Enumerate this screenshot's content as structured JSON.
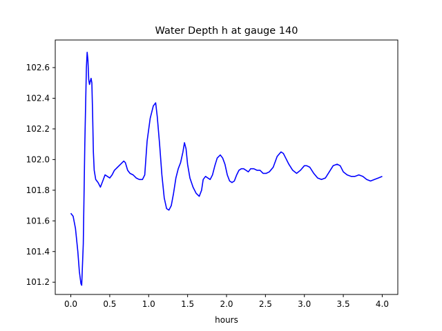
{
  "chart_data": {
    "type": "line",
    "title": "Water Depth h at gauge 140",
    "xlabel": "hours",
    "ylabel": "",
    "xlim": [
      -0.2,
      4.2
    ],
    "ylim": [
      101.12,
      102.78
    ],
    "xticks": [
      0.0,
      0.5,
      1.0,
      1.5,
      2.0,
      2.5,
      3.0,
      3.5,
      4.0
    ],
    "xtick_labels": [
      "0.0",
      "0.5",
      "1.0",
      "1.5",
      "2.0",
      "2.5",
      "3.0",
      "3.5",
      "4.0"
    ],
    "yticks": [
      101.2,
      101.4,
      101.6,
      101.8,
      102.0,
      102.2,
      102.4,
      102.6
    ],
    "ytick_labels": [
      "101.2",
      "101.4",
      "101.6",
      "101.8",
      "102.0",
      "102.2",
      "102.4",
      "102.6"
    ],
    "grid": false,
    "colors": {
      "line": "#0000ff",
      "axes": "#000000",
      "background": "#ffffff"
    },
    "series": [
      {
        "x": [
          0.0,
          0.03,
          0.06,
          0.09,
          0.11,
          0.13,
          0.14,
          0.16,
          0.18,
          0.2,
          0.21,
          0.22,
          0.23,
          0.24,
          0.25,
          0.26,
          0.27,
          0.28,
          0.29,
          0.3,
          0.32,
          0.35,
          0.38,
          0.41,
          0.44,
          0.47,
          0.5,
          0.53,
          0.56,
          0.6,
          0.64,
          0.68,
          0.7,
          0.73,
          0.76,
          0.8,
          0.84,
          0.88,
          0.92,
          0.95,
          0.98,
          1.02,
          1.06,
          1.09,
          1.11,
          1.14,
          1.17,
          1.2,
          1.23,
          1.26,
          1.29,
          1.32,
          1.35,
          1.38,
          1.41,
          1.44,
          1.46,
          1.48,
          1.5,
          1.53,
          1.57,
          1.61,
          1.65,
          1.68,
          1.7,
          1.73,
          1.76,
          1.79,
          1.82,
          1.85,
          1.88,
          1.92,
          1.95,
          1.98,
          2.01,
          2.04,
          2.07,
          2.1,
          2.13,
          2.16,
          2.19,
          2.22,
          2.25,
          2.28,
          2.31,
          2.35,
          2.39,
          2.43,
          2.47,
          2.51,
          2.55,
          2.6,
          2.65,
          2.7,
          2.73,
          2.76,
          2.8,
          2.85,
          2.9,
          2.95,
          3.0,
          3.03,
          3.07,
          3.12,
          3.17,
          3.22,
          3.27,
          3.32,
          3.37,
          3.42,
          3.46,
          3.5,
          3.55,
          3.6,
          3.65,
          3.7,
          3.75,
          3.8,
          3.85,
          3.9,
          3.95,
          4.0
        ],
        "y": [
          101.65,
          101.63,
          101.55,
          101.4,
          101.27,
          101.19,
          101.18,
          101.45,
          102.1,
          102.6,
          102.7,
          102.65,
          102.52,
          102.49,
          102.51,
          102.53,
          102.5,
          102.3,
          102.05,
          101.93,
          101.87,
          101.85,
          101.82,
          101.86,
          101.9,
          101.89,
          101.88,
          101.9,
          101.93,
          101.95,
          101.97,
          101.99,
          101.98,
          101.93,
          101.91,
          101.9,
          101.88,
          101.87,
          101.87,
          101.9,
          102.12,
          102.27,
          102.35,
          102.37,
          102.28,
          102.1,
          101.9,
          101.75,
          101.68,
          101.67,
          101.7,
          101.78,
          101.88,
          101.94,
          101.98,
          102.05,
          102.11,
          102.07,
          101.97,
          101.88,
          101.82,
          101.78,
          101.76,
          101.8,
          101.87,
          101.89,
          101.88,
          101.87,
          101.9,
          101.96,
          102.01,
          102.03,
          102.01,
          101.97,
          101.9,
          101.86,
          101.85,
          101.86,
          101.9,
          101.93,
          101.94,
          101.94,
          101.93,
          101.92,
          101.94,
          101.94,
          101.93,
          101.93,
          101.91,
          101.91,
          101.92,
          101.95,
          102.02,
          102.05,
          102.04,
          102.01,
          101.97,
          101.93,
          101.91,
          101.93,
          101.96,
          101.96,
          101.95,
          101.91,
          101.88,
          101.87,
          101.88,
          101.92,
          101.96,
          101.97,
          101.96,
          101.92,
          101.9,
          101.89,
          101.89,
          101.9,
          101.89,
          101.87,
          101.86,
          101.87,
          101.88,
          101.89
        ]
      }
    ]
  }
}
